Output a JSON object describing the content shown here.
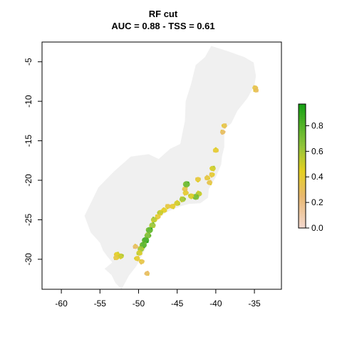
{
  "chart_data": {
    "type": "heatmap",
    "title": "RF cut",
    "subtitle": "AUC = 0.88 - TSS = 0.61",
    "xlabel": "",
    "ylabel": "",
    "xlim": [
      -62.5,
      -31.5
    ],
    "ylim": [
      -33.8,
      -2.5
    ],
    "x_ticks": [
      -60,
      -55,
      -50,
      -45,
      -40,
      -35
    ],
    "y_ticks": [
      -5,
      -10,
      -15,
      -20,
      -25,
      -30
    ],
    "x_tick_labels": [
      "-60",
      "-55",
      "-50",
      "-45",
      "-40",
      "-35"
    ],
    "y_tick_labels": [
      "-5",
      "-10",
      "-15",
      "-20",
      "-25",
      "-30"
    ],
    "grid": false,
    "background_region": {
      "name": "",
      "color": "#f0f0f0",
      "outline_lonlat": [
        [
          -34.8,
          -6.8
        ],
        [
          -35.1,
          -5.1
        ],
        [
          -36.3,
          -4.4
        ],
        [
          -38.6,
          -3.6
        ],
        [
          -40.6,
          -3.0
        ],
        [
          -41.4,
          -4.4
        ],
        [
          -42.6,
          -5.4
        ],
        [
          -43.2,
          -7.8
        ],
        [
          -43.9,
          -10.0
        ],
        [
          -44.0,
          -12.5
        ],
        [
          -44.6,
          -15.4
        ],
        [
          -45.9,
          -16.0
        ],
        [
          -47.4,
          -17.3
        ],
        [
          -48.7,
          -16.7
        ],
        [
          -51.0,
          -17.0
        ],
        [
          -53.2,
          -18.9
        ],
        [
          -55.2,
          -20.9
        ],
        [
          -56.2,
          -22.9
        ],
        [
          -57.0,
          -24.5
        ],
        [
          -56.2,
          -26.6
        ],
        [
          -55.0,
          -27.9
        ],
        [
          -54.6,
          -28.9
        ],
        [
          -54.0,
          -29.7
        ],
        [
          -53.4,
          -30.4
        ],
        [
          -54.4,
          -31.2
        ],
        [
          -53.5,
          -32.0
        ],
        [
          -53.0,
          -33.0
        ],
        [
          -52.2,
          -33.8
        ],
        [
          -51.2,
          -32.0
        ],
        [
          -50.3,
          -30.9
        ],
        [
          -49.0,
          -28.5
        ],
        [
          -48.7,
          -26.5
        ],
        [
          -48.4,
          -25.9
        ],
        [
          -47.5,
          -24.8
        ],
        [
          -46.3,
          -24.0
        ],
        [
          -44.6,
          -23.3
        ],
        [
          -43.5,
          -23.0
        ],
        [
          -42.0,
          -22.9
        ],
        [
          -41.0,
          -22.2
        ],
        [
          -40.9,
          -21.1
        ],
        [
          -40.0,
          -19.6
        ],
        [
          -39.3,
          -18.0
        ],
        [
          -39.2,
          -17.0
        ],
        [
          -38.9,
          -15.8
        ],
        [
          -38.9,
          -13.5
        ],
        [
          -38.0,
          -12.8
        ],
        [
          -37.2,
          -11.2
        ],
        [
          -35.9,
          -9.6
        ],
        [
          -35.0,
          -8.0
        ]
      ]
    },
    "legend": {
      "placement": "right",
      "colorscale": [
        {
          "value": 0.0,
          "color": "#f3d8d0"
        },
        {
          "value": 0.25,
          "color": "#e8b870"
        },
        {
          "value": 0.45,
          "color": "#e4d020"
        },
        {
          "value": 0.65,
          "color": "#8ec33a"
        },
        {
          "value": 0.97,
          "color": "#15a013"
        }
      ],
      "range": [
        0,
        0.97
      ],
      "ticks": [
        0,
        0.2,
        0.4,
        0.6,
        0.8
      ],
      "tick_labels": [
        "0.0",
        "0.2",
        "0.4",
        "0.6",
        "0.8"
      ]
    },
    "patches": [
      {
        "lon": -34.9,
        "lat": -8.3,
        "value": 0.36
      },
      {
        "lon": -34.8,
        "lat": -8.6,
        "value": 0.32
      },
      {
        "lon": -38.9,
        "lat": -13.1,
        "value": 0.35
      },
      {
        "lon": -39.1,
        "lat": -13.9,
        "value": 0.3
      },
      {
        "lon": -40.0,
        "lat": -16.2,
        "value": 0.42
      },
      {
        "lon": -40.4,
        "lat": -18.5,
        "value": 0.5
      },
      {
        "lon": -40.5,
        "lat": -19.3,
        "value": 0.4
      },
      {
        "lon": -41.1,
        "lat": -19.7,
        "value": 0.38
      },
      {
        "lon": -40.8,
        "lat": -20.3,
        "value": 0.36
      },
      {
        "lon": -42.3,
        "lat": -19.9,
        "value": 0.4
      },
      {
        "lon": -42.2,
        "lat": -21.7,
        "value": 0.55
      },
      {
        "lon": -42.6,
        "lat": -22.1,
        "value": 0.72
      },
      {
        "lon": -43.2,
        "lat": -22.0,
        "value": 0.48
      },
      {
        "lon": -43.9,
        "lat": -21.6,
        "value": 0.42
      },
      {
        "lon": -44.0,
        "lat": -21.1,
        "value": 0.35
      },
      {
        "lon": -43.8,
        "lat": -20.5,
        "value": 0.75
      },
      {
        "lon": -44.3,
        "lat": -22.4,
        "value": 0.6
      },
      {
        "lon": -45.0,
        "lat": -22.9,
        "value": 0.5
      },
      {
        "lon": -45.6,
        "lat": -23.3,
        "value": 0.42
      },
      {
        "lon": -46.2,
        "lat": -23.3,
        "value": 0.38
      },
      {
        "lon": -46.7,
        "lat": -23.8,
        "value": 0.45
      },
      {
        "lon": -47.2,
        "lat": -24.1,
        "value": 0.52
      },
      {
        "lon": -47.5,
        "lat": -24.6,
        "value": 0.4
      },
      {
        "lon": -48.0,
        "lat": -25.0,
        "value": 0.55
      },
      {
        "lon": -48.2,
        "lat": -25.7,
        "value": 0.62
      },
      {
        "lon": -48.6,
        "lat": -26.3,
        "value": 0.78
      },
      {
        "lon": -48.8,
        "lat": -27.0,
        "value": 0.7
      },
      {
        "lon": -49.1,
        "lat": -27.6,
        "value": 0.85
      },
      {
        "lon": -49.4,
        "lat": -28.2,
        "value": 0.8
      },
      {
        "lon": -49.7,
        "lat": -28.7,
        "value": 0.62
      },
      {
        "lon": -49.9,
        "lat": -29.2,
        "value": 0.5
      },
      {
        "lon": -50.2,
        "lat": -29.9,
        "value": 0.42
      },
      {
        "lon": -49.6,
        "lat": -30.3,
        "value": 0.36
      },
      {
        "lon": -50.4,
        "lat": -28.4,
        "value": 0.3
      },
      {
        "lon": -52.8,
        "lat": -29.4,
        "value": 0.45
      },
      {
        "lon": -52.3,
        "lat": -29.6,
        "value": 0.52
      },
      {
        "lon": -52.9,
        "lat": -29.8,
        "value": 0.38
      },
      {
        "lon": -48.9,
        "lat": -31.8,
        "value": 0.3
      }
    ]
  }
}
